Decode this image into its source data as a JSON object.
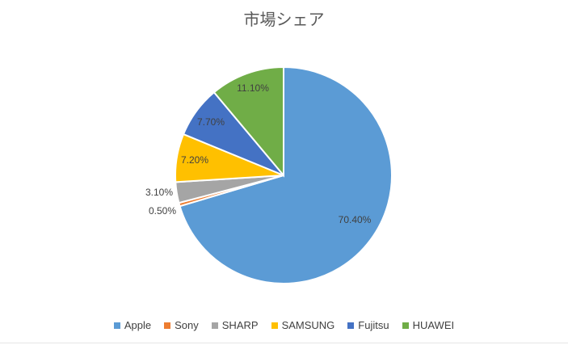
{
  "chart_data": {
    "type": "pie",
    "title": "市場シェア",
    "categories": [
      "Apple",
      "Sony",
      "SHARP",
      "SAMSUNG",
      "Fujitsu",
      "HUAWEI"
    ],
    "values": [
      70.4,
      0.5,
      3.1,
      7.2,
      7.7,
      11.1
    ],
    "data_labels": [
      "70.40%",
      "0.50%",
      "3.10%",
      "7.20%",
      "7.70%",
      "11.10%"
    ],
    "colors": [
      "#5B9BD5",
      "#ED7D31",
      "#A5A5A5",
      "#FFC000",
      "#4472C4",
      "#70AD47"
    ],
    "legend_position": "bottom",
    "start_angle_deg": 0,
    "direction": "clockwise"
  }
}
